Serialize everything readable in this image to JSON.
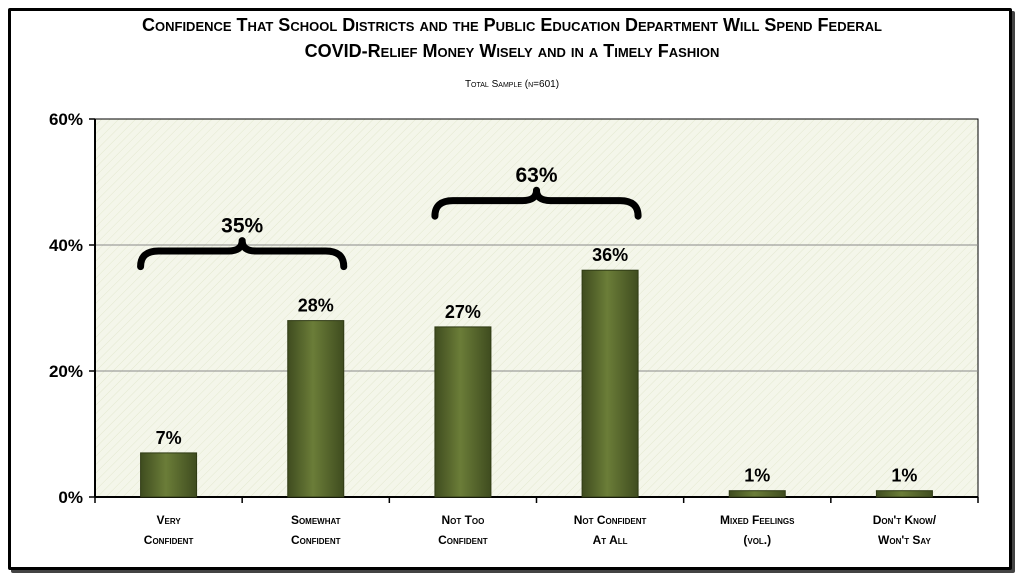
{
  "chart_data": {
    "type": "bar",
    "title_lines": [
      "Confidence That School Districts and the Public Education Department Will Spend Federal",
      "COVID-Relief Money Wisely and in a Timely Fashion"
    ],
    "subtitle": "Total Sample (n=601)",
    "categories": [
      [
        "Very",
        "Confident"
      ],
      [
        "Somewhat",
        "Confident"
      ],
      [
        "Not Too",
        "Confident"
      ],
      [
        "Not Confident",
        "At All"
      ],
      [
        "Mixed Feelings",
        "(vol.)"
      ],
      [
        "Don't Know/",
        "Won't Say"
      ]
    ],
    "values": [
      7,
      28,
      27,
      36,
      1,
      1
    ],
    "value_labels": [
      "7%",
      "28%",
      "27%",
      "36%",
      "1%",
      "1%"
    ],
    "yticks": [
      "0%",
      "20%",
      "40%",
      "60%"
    ],
    "ylim": [
      0,
      60
    ],
    "grid": true,
    "bar_color": "#5a6a2e",
    "brace_groups": [
      {
        "from": 0,
        "to": 1,
        "label": "35%"
      },
      {
        "from": 2,
        "to": 3,
        "label": "63%"
      }
    ]
  }
}
